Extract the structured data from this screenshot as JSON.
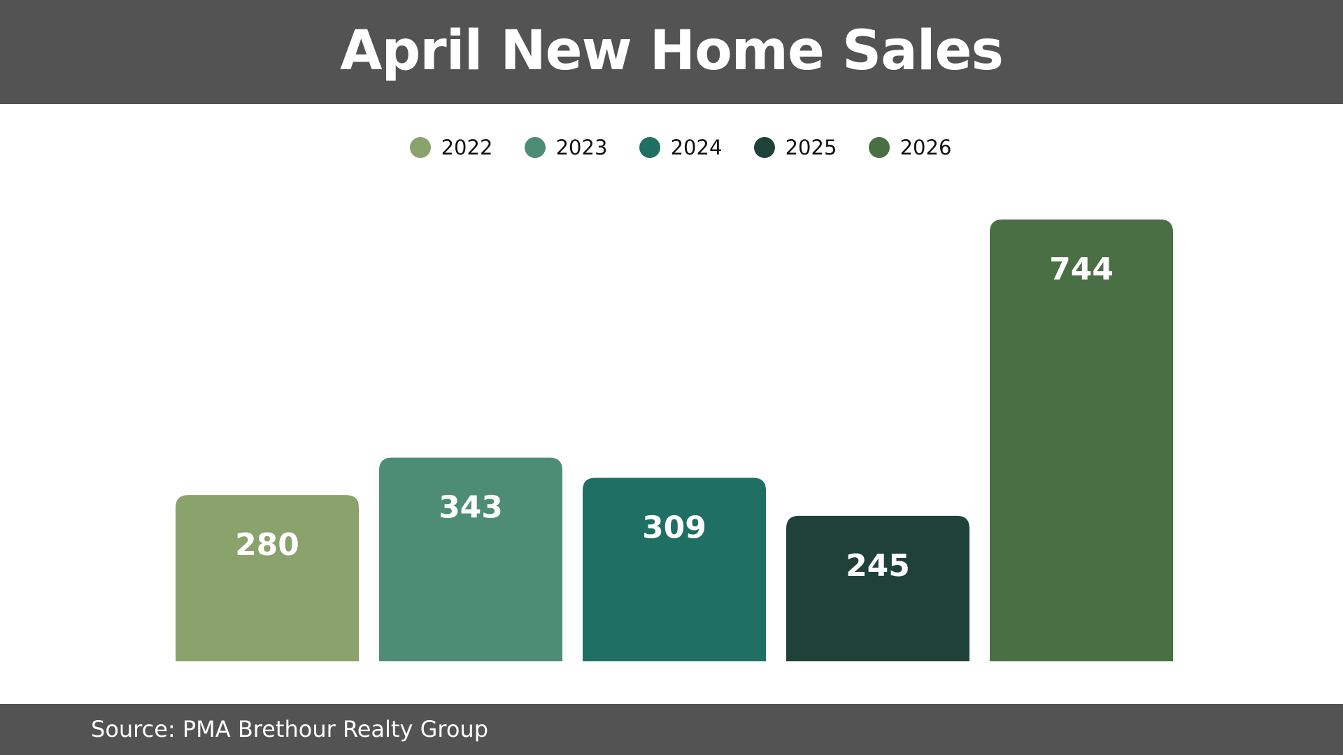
{
  "header": {
    "title": "April New Home Sales"
  },
  "footer": {
    "source": "Source: PMA Brethour Realty Group"
  },
  "colors": {
    "header_bg": "#535353",
    "footer_bg": "#535353",
    "label_text": "#ffffff"
  },
  "chart_data": {
    "type": "bar",
    "title": "April New Home Sales",
    "xlabel": "",
    "ylabel": "",
    "ylim": [
      0,
      744
    ],
    "grid": false,
    "legend_position": "top-center",
    "categories": [
      "2022",
      "2023",
      "2024",
      "2025",
      "2026"
    ],
    "values": [
      280,
      343,
      309,
      245,
      744
    ],
    "series": [
      {
        "name": "2022",
        "value": 280,
        "color": "#8aa26c"
      },
      {
        "name": "2023",
        "value": 343,
        "color": "#4d8d75"
      },
      {
        "name": "2024",
        "value": 309,
        "color": "#1f6f63"
      },
      {
        "name": "2025",
        "value": 245,
        "color": "#1f4137"
      },
      {
        "name": "2026",
        "value": 744,
        "color": "#4a6f44"
      }
    ]
  }
}
